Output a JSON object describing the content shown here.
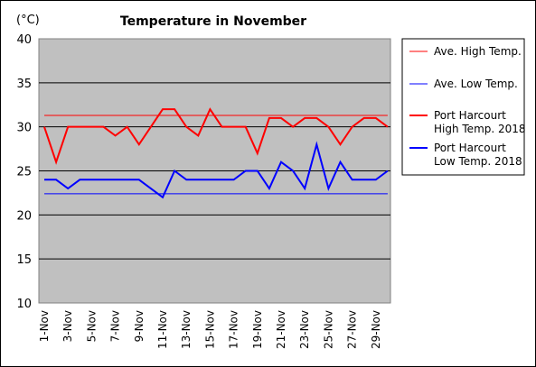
{
  "chart_data": {
    "type": "line",
    "title": "Temperature in November",
    "unit_label": "(°C)",
    "ylim": [
      10,
      40
    ],
    "yticks": [
      10,
      15,
      20,
      25,
      30,
      35,
      40
    ],
    "grid": true,
    "legend_position": "right",
    "x": [
      1,
      2,
      3,
      4,
      5,
      6,
      7,
      8,
      9,
      10,
      11,
      12,
      13,
      14,
      15,
      16,
      17,
      18,
      19,
      20,
      21,
      22,
      23,
      24,
      25,
      26,
      27,
      28,
      29,
      30
    ],
    "xtick_labels": [
      "1-Nov",
      "3-Nov",
      "5-Nov",
      "7-Nov",
      "9-Nov",
      "11-Nov",
      "13-Nov",
      "15-Nov",
      "17-Nov",
      "19-Nov",
      "21-Nov",
      "23-Nov",
      "25-Nov",
      "27-Nov",
      "29-Nov"
    ],
    "xtick_positions": [
      1,
      3,
      5,
      7,
      9,
      11,
      13,
      15,
      17,
      19,
      21,
      23,
      25,
      27,
      29
    ],
    "series": [
      {
        "name": "Ave. High Temp.",
        "color": "#ff0000",
        "width": 1,
        "constant": 31.3
      },
      {
        "name": "Ave. Low Temp.",
        "color": "#0000ff",
        "width": 1,
        "constant": 22.4
      },
      {
        "name": "Port Harcourt High Temp. 2018",
        "label_lines": [
          "Port Harcourt",
          "High Temp. 2018"
        ],
        "color": "#ff0000",
        "width": 2,
        "values": [
          30,
          26,
          30,
          30,
          30,
          30,
          29,
          30,
          28,
          30,
          32,
          32,
          30,
          29,
          32,
          30,
          30,
          30,
          27,
          31,
          31,
          30,
          31,
          31,
          30,
          28,
          30,
          31,
          31,
          30
        ]
      },
      {
        "name": "Port Harcourt Low Temp. 2018",
        "label_lines": [
          "Port Harcourt",
          "Low Temp. 2018"
        ],
        "color": "#0000ff",
        "width": 2,
        "values": [
          24,
          24,
          23,
          24,
          24,
          24,
          24,
          24,
          24,
          23,
          22,
          25,
          24,
          24,
          24,
          24,
          24,
          25,
          25,
          23,
          26,
          25,
          23,
          28,
          23,
          26,
          24,
          24,
          24,
          25
        ]
      }
    ]
  }
}
